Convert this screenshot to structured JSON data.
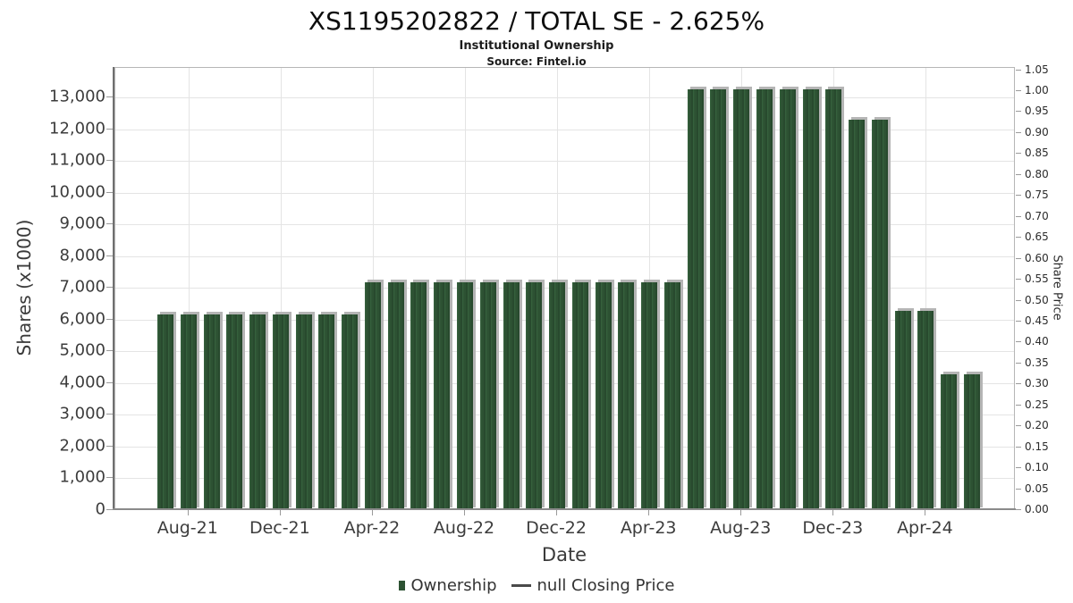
{
  "header": {
    "title": "XS1195202822 / TOTAL SE - 2.625%",
    "subtitle": "Institutional Ownership",
    "source": "Source: Fintel.io"
  },
  "chart_data": {
    "type": "bar",
    "title": "XS1195202822 / TOTAL SE - 2.625%",
    "subtitle": "Institutional Ownership",
    "source": "Source: Fintel.io",
    "xlabel": "Date",
    "ylabel_left": "Shares (x1000)",
    "ylabel_right": "Share Price",
    "grid": true,
    "legend_position": "bottom-center",
    "categories": [
      "Jul-21",
      "Aug-21",
      "Sep-21",
      "Oct-21",
      "Nov-21",
      "Dec-21",
      "Jan-22",
      "Feb-22",
      "Mar-22",
      "Apr-22",
      "May-22",
      "Jun-22",
      "Jul-22",
      "Aug-22",
      "Sep-22",
      "Oct-22",
      "Nov-22",
      "Dec-22",
      "Jan-23",
      "Feb-23",
      "Mar-23",
      "Apr-23",
      "May-23",
      "Jun-23",
      "Jul-23",
      "Aug-23",
      "Sep-23",
      "Oct-23",
      "Nov-23",
      "Dec-23",
      "Jan-24",
      "Feb-24",
      "Mar-24",
      "Apr-24",
      "May-24",
      "Jun-24"
    ],
    "series": [
      {
        "name": "Ownership",
        "unit": "shares x1000",
        "values": [
          6170,
          6170,
          6170,
          6170,
          6170,
          6170,
          6170,
          6170,
          6170,
          7190,
          7190,
          7190,
          7190,
          7190,
          7190,
          7190,
          7190,
          7190,
          7190,
          7190,
          7190,
          7190,
          7190,
          13250,
          13250,
          13250,
          13250,
          13250,
          13250,
          13250,
          12300,
          12300,
          6280,
          6280,
          4270,
          4270
        ]
      },
      {
        "name": "null Closing Price",
        "unit": "share price",
        "values": null
      }
    ],
    "x_ticks": [
      {
        "label": "Aug-21",
        "index": 1
      },
      {
        "label": "Dec-21",
        "index": 5
      },
      {
        "label": "Apr-22",
        "index": 9
      },
      {
        "label": "Aug-22",
        "index": 13
      },
      {
        "label": "Dec-22",
        "index": 17
      },
      {
        "label": "Apr-23",
        "index": 21
      },
      {
        "label": "Aug-23",
        "index": 25
      },
      {
        "label": "Dec-23",
        "index": 29
      },
      {
        "label": "Apr-24",
        "index": 33
      }
    ],
    "y_left_ticks": [
      {
        "label": "0",
        "value": 0
      },
      {
        "label": "1,000",
        "value": 1000
      },
      {
        "label": "2,000",
        "value": 2000
      },
      {
        "label": "3,000",
        "value": 3000
      },
      {
        "label": "4,000",
        "value": 4000
      },
      {
        "label": "5,000",
        "value": 5000
      },
      {
        "label": "6,000",
        "value": 6000
      },
      {
        "label": "7,000",
        "value": 7000
      },
      {
        "label": "8,000",
        "value": 8000
      },
      {
        "label": "9,000",
        "value": 9000
      },
      {
        "label": "10,000",
        "value": 10000
      },
      {
        "label": "11,000",
        "value": 11000
      },
      {
        "label": "12,000",
        "value": 12000
      },
      {
        "label": "13,000",
        "value": 13000
      }
    ],
    "y_right_ticks": [
      {
        "label": "0.00",
        "value": 0.0
      },
      {
        "label": "0.05",
        "value": 0.05
      },
      {
        "label": "0.10",
        "value": 0.1
      },
      {
        "label": "0.15",
        "value": 0.15
      },
      {
        "label": "0.20",
        "value": 0.2
      },
      {
        "label": "0.25",
        "value": 0.25
      },
      {
        "label": "0.30",
        "value": 0.3
      },
      {
        "label": "0.35",
        "value": 0.35
      },
      {
        "label": "0.40",
        "value": 0.4
      },
      {
        "label": "0.45",
        "value": 0.45
      },
      {
        "label": "0.50",
        "value": 0.5
      },
      {
        "label": "0.55",
        "value": 0.55
      },
      {
        "label": "0.60",
        "value": 0.6
      },
      {
        "label": "0.65",
        "value": 0.65
      },
      {
        "label": "0.70",
        "value": 0.7
      },
      {
        "label": "0.75",
        "value": 0.75
      },
      {
        "label": "0.80",
        "value": 0.8
      },
      {
        "label": "0.85",
        "value": 0.85
      },
      {
        "label": "0.90",
        "value": 0.9
      },
      {
        "label": "0.95",
        "value": 0.95
      },
      {
        "label": "1.00",
        "value": 1.0
      },
      {
        "label": "1.05",
        "value": 1.05
      }
    ],
    "ylim_left": [
      0,
      13930
    ],
    "ylim_right": [
      0,
      1.0555
    ],
    "legend": [
      {
        "label": "Ownership",
        "marker": "square",
        "color": "#2d5233"
      },
      {
        "label": "null Closing Price",
        "marker": "line",
        "color": "#4a4a4a"
      }
    ],
    "colors": {
      "bar": "#2d5233",
      "bar_stripe_dark": "#22432a",
      "bar_stripe_light": "#386440",
      "bar_shadow": "#b5b5b5",
      "grid": "#e4e4e4",
      "axis_spine": "#6f6f6f"
    }
  }
}
